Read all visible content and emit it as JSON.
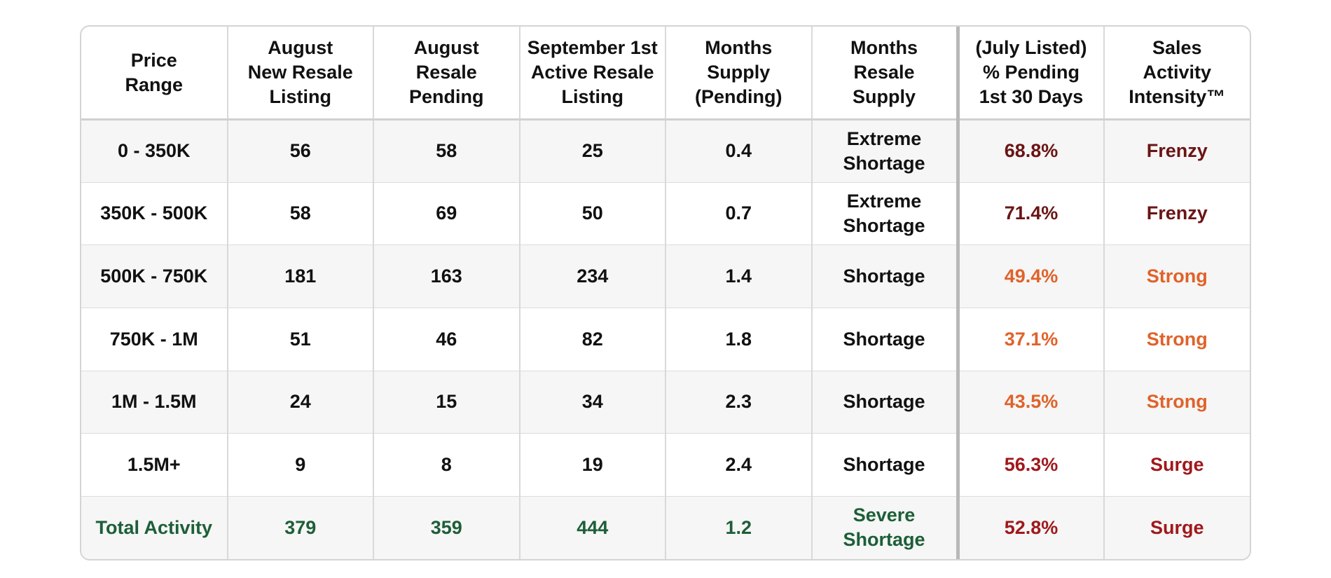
{
  "table": {
    "headers": [
      [
        "Price",
        "Range"
      ],
      [
        "August",
        "New Resale",
        "Listing"
      ],
      [
        "August",
        "Resale",
        "Pending"
      ],
      [
        "September 1st",
        "Active Resale",
        "Listing"
      ],
      [
        "Months",
        "Supply",
        "(Pending)"
      ],
      [
        "Months",
        "Resale",
        "Supply"
      ],
      [
        "(July Listed)",
        "% Pending",
        "1st 30 Days"
      ],
      [
        "Sales",
        "Activity",
        "Intensity™"
      ]
    ],
    "rows": [
      {
        "price": "0 - 350K",
        "new_listing": "56",
        "pending": "58",
        "active": "25",
        "months_pending": "0.4",
        "supply": [
          "Extreme",
          "Shortage"
        ],
        "pct": "68.8%",
        "intensity": "Frenzy"
      },
      {
        "price": "350K - 500K",
        "new_listing": "58",
        "pending": "69",
        "active": "50",
        "months_pending": "0.7",
        "supply": [
          "Extreme",
          "Shortage"
        ],
        "pct": "71.4%",
        "intensity": "Frenzy"
      },
      {
        "price": "500K - 750K",
        "new_listing": "181",
        "pending": "163",
        "active": "234",
        "months_pending": "1.4",
        "supply": [
          "Shortage"
        ],
        "pct": "49.4%",
        "intensity": "Strong"
      },
      {
        "price": "750K - 1M",
        "new_listing": "51",
        "pending": "46",
        "active": "82",
        "months_pending": "1.8",
        "supply": [
          "Shortage"
        ],
        "pct": "37.1%",
        "intensity": "Strong"
      },
      {
        "price": "1M - 1.5M",
        "new_listing": "24",
        "pending": "15",
        "active": "34",
        "months_pending": "2.3",
        "supply": [
          "Shortage"
        ],
        "pct": "43.5%",
        "intensity": "Strong"
      },
      {
        "price": "1.5M+",
        "new_listing": "9",
        "pending": "8",
        "active": "19",
        "months_pending": "2.4",
        "supply": [
          "Shortage"
        ],
        "pct": "56.3%",
        "intensity": "Surge"
      },
      {
        "price": "Total Activity",
        "new_listing": "379",
        "pending": "359",
        "active": "444",
        "months_pending": "1.2",
        "supply": [
          "Severe",
          "Shortage"
        ],
        "pct": "52.8%",
        "intensity": "Surge"
      }
    ]
  },
  "colors": {
    "text": "#111111",
    "total_green": "#1d5e38",
    "frenzy": "#6b1414",
    "strong": "#e0622a",
    "surge": "#a0181c"
  }
}
